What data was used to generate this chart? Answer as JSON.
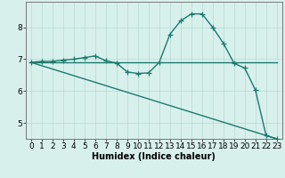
{
  "line1_x": [
    0,
    1,
    2,
    3,
    4,
    5,
    6,
    7,
    8,
    9,
    10,
    11,
    12,
    13,
    14,
    15,
    16,
    17,
    18,
    19,
    20,
    21,
    22,
    23
  ],
  "line1_y": [
    6.9,
    6.93,
    6.93,
    6.97,
    7.0,
    7.05,
    7.1,
    6.95,
    6.88,
    6.6,
    6.55,
    6.57,
    6.9,
    7.78,
    8.2,
    8.42,
    8.42,
    8.0,
    7.5,
    6.87,
    6.72,
    6.03,
    4.6,
    4.5
  ],
  "line2_x": [
    0,
    14,
    20,
    23
  ],
  "line2_y": [
    6.9,
    6.9,
    6.9,
    6.9
  ],
  "line3_x": [
    0,
    23
  ],
  "line3_y": [
    6.9,
    4.5
  ],
  "color": "#1a7a6e",
  "marker": "+",
  "markersize": 4,
  "linewidth": 1.0,
  "bg_color": "#d8f0ec",
  "grid_color": "#b8ddd8",
  "xlabel": "Humidex (Indice chaleur)",
  "xlim": [
    -0.5,
    23.5
  ],
  "ylim": [
    4.5,
    8.8
  ],
  "yticks": [
    5,
    6,
    7,
    8
  ],
  "xticks": [
    0,
    1,
    2,
    3,
    4,
    5,
    6,
    7,
    8,
    9,
    10,
    11,
    12,
    13,
    14,
    15,
    16,
    17,
    18,
    19,
    20,
    21,
    22,
    23
  ],
  "xlabel_fontsize": 7,
  "tick_fontsize": 6.5
}
